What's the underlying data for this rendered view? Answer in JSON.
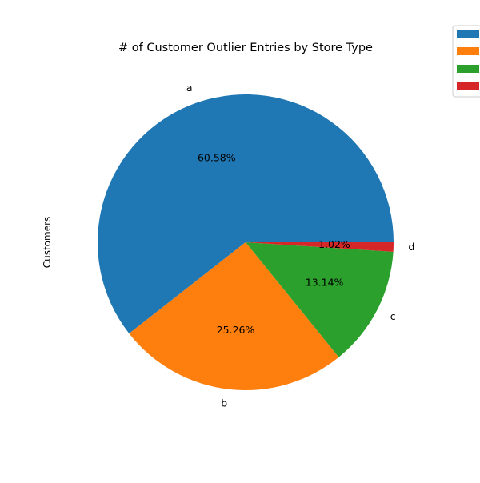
{
  "chart_data": {
    "type": "pie",
    "title": "# of Customer Outlier Entries by Store Type",
    "ylabel": "Customers",
    "categories": [
      "a",
      "b",
      "c",
      "d"
    ],
    "values": [
      60.58,
      25.26,
      13.14,
      1.02
    ],
    "percent_labels": [
      "60.58%",
      "25.26%",
      "13.14%",
      "1.02%"
    ],
    "colors": [
      "#1f77b4",
      "#ff7f0e",
      "#2ca02c",
      "#d62728"
    ],
    "start_angle": "0° (3 o'clock), counterclockwise",
    "legend": {
      "placement": "top-right, outside plot",
      "entries": [
        "",
        "",
        "",
        ""
      ]
    }
  }
}
